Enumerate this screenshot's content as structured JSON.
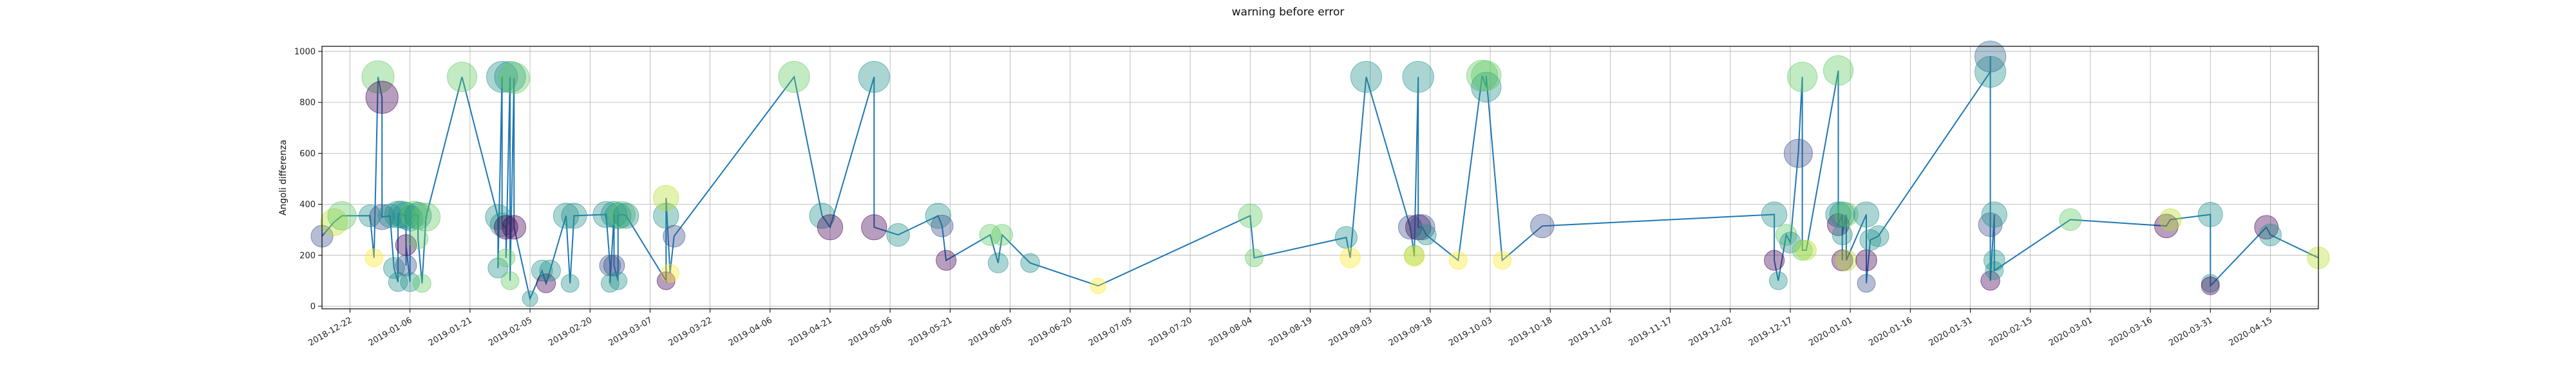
{
  "chart_data": {
    "type": "scatter",
    "title": "warning before error",
    "xlabel": "",
    "ylabel": "Angoli differenza",
    "ylim": [
      -10,
      1020
    ],
    "xlim": [
      "2018-12-15",
      "2020-04-27"
    ],
    "grid": true,
    "yticks": [
      0,
      200,
      400,
      600,
      800,
      1000
    ],
    "xticks": [
      "2018-12-22",
      "2019-01-06",
      "2019-01-21",
      "2019-02-05",
      "2019-02-20",
      "2019-03-07",
      "2019-03-22",
      "2019-04-06",
      "2019-04-21",
      "2019-05-06",
      "2019-05-21",
      "2019-06-05",
      "2019-06-20",
      "2019-07-05",
      "2019-07-20",
      "2019-08-04",
      "2019-08-19",
      "2019-09-03",
      "2019-09-18",
      "2019-10-03",
      "2019-10-18",
      "2019-11-02",
      "2019-11-17",
      "2019-12-02",
      "2019-12-17",
      "2020-01-01",
      "2020-01-16",
      "2020-01-31",
      "2020-02-15",
      "2020-03-01",
      "2020-03-16",
      "2020-03-31",
      "2020-04-15"
    ],
    "line_color": "#1f77b4",
    "points": [
      {
        "x": "2018-12-15",
        "y": 275,
        "s": 60,
        "c": "#3b528b"
      },
      {
        "x": "2018-12-18",
        "y": 330,
        "s": 90,
        "c": "#b5de2b"
      },
      {
        "x": "2018-12-20",
        "y": 355,
        "s": 100,
        "c": "#5ec962"
      },
      {
        "x": "2018-12-27",
        "y": 355,
        "s": 60,
        "c": "#21918c"
      },
      {
        "x": "2018-12-28",
        "y": 190,
        "s": 40,
        "c": "#fde725"
      },
      {
        "x": "2018-12-29",
        "y": 900,
        "s": 130,
        "c": "#5ec962"
      },
      {
        "x": "2018-12-30",
        "y": 820,
        "s": 130,
        "c": "#440154"
      },
      {
        "x": "2018-12-30",
        "y": 350,
        "s": 80,
        "c": "#3b528b"
      },
      {
        "x": "2019-01-01",
        "y": 355,
        "s": 70,
        "c": "#21918c"
      },
      {
        "x": "2019-01-02",
        "y": 150,
        "s": 55,
        "c": "#21918c"
      },
      {
        "x": "2019-01-03",
        "y": 95,
        "s": 45,
        "c": "#21918c"
      },
      {
        "x": "2019-01-03",
        "y": 360,
        "s": 90,
        "c": "#21918c"
      },
      {
        "x": "2019-01-04",
        "y": 360,
        "s": 90,
        "c": "#21918c"
      },
      {
        "x": "2019-01-05",
        "y": 355,
        "s": 90,
        "c": "#21918c"
      },
      {
        "x": "2019-01-05",
        "y": 160,
        "s": 55,
        "c": "#3b528b"
      },
      {
        "x": "2019-01-05",
        "y": 240,
        "s": 55,
        "c": "#440154"
      },
      {
        "x": "2019-01-06",
        "y": 95,
        "s": 45,
        "c": "#21918c"
      },
      {
        "x": "2019-01-06",
        "y": 345,
        "s": 80,
        "c": "#21918c"
      },
      {
        "x": "2019-01-07",
        "y": 360,
        "s": 90,
        "c": "#5ec962"
      },
      {
        "x": "2019-01-08",
        "y": 355,
        "s": 90,
        "c": "#21918c"
      },
      {
        "x": "2019-01-08",
        "y": 265,
        "s": 50,
        "c": "#5ec962"
      },
      {
        "x": "2019-01-09",
        "y": 90,
        "s": 40,
        "c": "#5ec962"
      },
      {
        "x": "2019-01-10",
        "y": 350,
        "s": 100,
        "c": "#5ec962"
      },
      {
        "x": "2019-01-19",
        "y": 900,
        "s": 110,
        "c": "#5ec962"
      },
      {
        "x": "2019-01-28",
        "y": 350,
        "s": 80,
        "c": "#21918c"
      },
      {
        "x": "2019-01-28",
        "y": 150,
        "s": 50,
        "c": "#21918c"
      },
      {
        "x": "2019-01-29",
        "y": 900,
        "s": 120,
        "c": "#21918c"
      },
      {
        "x": "2019-01-29",
        "y": 320,
        "s": 70,
        "c": "#21918c"
      },
      {
        "x": "2019-01-30",
        "y": 310,
        "s": 70,
        "c": "#440154"
      },
      {
        "x": "2019-01-30",
        "y": 190,
        "s": 40,
        "c": "#5ec962"
      },
      {
        "x": "2019-01-31",
        "y": 900,
        "s": 120,
        "c": "#21918c"
      },
      {
        "x": "2019-01-31",
        "y": 100,
        "s": 40,
        "c": "#5ec962"
      },
      {
        "x": "2019-02-01",
        "y": 895,
        "s": 120,
        "c": "#5ec962"
      },
      {
        "x": "2019-02-01",
        "y": 310,
        "s": 70,
        "c": "#440154"
      },
      {
        "x": "2019-02-05",
        "y": 30,
        "s": 30,
        "c": "#21918c"
      },
      {
        "x": "2019-02-08",
        "y": 140,
        "s": 55,
        "c": "#21918c"
      },
      {
        "x": "2019-02-09",
        "y": 90,
        "s": 45,
        "c": "#440154"
      },
      {
        "x": "2019-02-10",
        "y": 140,
        "s": 55,
        "c": "#21918c"
      },
      {
        "x": "2019-02-14",
        "y": 355,
        "s": 80,
        "c": "#21918c"
      },
      {
        "x": "2019-02-15",
        "y": 90,
        "s": 40,
        "c": "#21918c"
      },
      {
        "x": "2019-02-16",
        "y": 355,
        "s": 80,
        "c": "#21918c"
      },
      {
        "x": "2019-02-24",
        "y": 360,
        "s": 85,
        "c": "#21918c"
      },
      {
        "x": "2019-02-25",
        "y": 160,
        "s": 55,
        "c": "#3b528b"
      },
      {
        "x": "2019-02-25",
        "y": 90,
        "s": 40,
        "c": "#21918c"
      },
      {
        "x": "2019-02-26",
        "y": 360,
        "s": 85,
        "c": "#21918c"
      },
      {
        "x": "2019-02-26",
        "y": 160,
        "s": 55,
        "c": "#3b528b"
      },
      {
        "x": "2019-02-27",
        "y": 100,
        "s": 40,
        "c": "#21918c"
      },
      {
        "x": "2019-02-27",
        "y": 355,
        "s": 85,
        "c": "#21918c"
      },
      {
        "x": "2019-02-28",
        "y": 360,
        "s": 85,
        "c": "#5ec962"
      },
      {
        "x": "2019-03-01",
        "y": 355,
        "s": 80,
        "c": "#21918c"
      },
      {
        "x": "2019-03-11",
        "y": 100,
        "s": 40,
        "c": "#440154"
      },
      {
        "x": "2019-03-11",
        "y": 355,
        "s": 80,
        "c": "#21918c"
      },
      {
        "x": "2019-03-11",
        "y": 425,
        "s": 80,
        "c": "#b5de2b"
      },
      {
        "x": "2019-03-12",
        "y": 130,
        "s": 40,
        "c": "#fde725"
      },
      {
        "x": "2019-03-13",
        "y": 275,
        "s": 60,
        "c": "#3b528b"
      },
      {
        "x": "2019-04-12",
        "y": 900,
        "s": 120,
        "c": "#5ec962"
      },
      {
        "x": "2019-04-19",
        "y": 355,
        "s": 80,
        "c": "#21918c"
      },
      {
        "x": "2019-04-21",
        "y": 310,
        "s": 80,
        "c": "#440154"
      },
      {
        "x": "2019-05-02",
        "y": 900,
        "s": 120,
        "c": "#21918c"
      },
      {
        "x": "2019-05-02",
        "y": 310,
        "s": 80,
        "c": "#440154"
      },
      {
        "x": "2019-05-08",
        "y": 280,
        "s": 65,
        "c": "#21918c"
      },
      {
        "x": "2019-05-18",
        "y": 355,
        "s": 80,
        "c": "#21918c"
      },
      {
        "x": "2019-05-19",
        "y": 315,
        "s": 60,
        "c": "#3b528b"
      },
      {
        "x": "2019-05-20",
        "y": 180,
        "s": 50,
        "c": "#440154"
      },
      {
        "x": "2019-05-31",
        "y": 280,
        "s": 55,
        "c": "#5ec962"
      },
      {
        "x": "2019-06-02",
        "y": 170,
        "s": 50,
        "c": "#21918c"
      },
      {
        "x": "2019-06-03",
        "y": 280,
        "s": 55,
        "c": "#5ec962"
      },
      {
        "x": "2019-06-10",
        "y": 170,
        "s": 45,
        "c": "#21918c"
      },
      {
        "x": "2019-06-27",
        "y": 80,
        "s": 30,
        "c": "#fde725"
      },
      {
        "x": "2019-08-04",
        "y": 355,
        "s": 70,
        "c": "#5ec962"
      },
      {
        "x": "2019-08-05",
        "y": 190,
        "s": 40,
        "c": "#5ec962"
      },
      {
        "x": "2019-08-28",
        "y": 270,
        "s": 60,
        "c": "#21918c"
      },
      {
        "x": "2019-08-29",
        "y": 190,
        "s": 50,
        "c": "#fde725"
      },
      {
        "x": "2019-09-02",
        "y": 900,
        "s": 120,
        "c": "#21918c"
      },
      {
        "x": "2019-09-13",
        "y": 310,
        "s": 70,
        "c": "#3b528b"
      },
      {
        "x": "2019-09-14",
        "y": 200,
        "s": 50,
        "c": "#5ec962"
      },
      {
        "x": "2019-09-14",
        "y": 195,
        "s": 50,
        "c": "#fde725"
      },
      {
        "x": "2019-09-15",
        "y": 900,
        "s": 120,
        "c": "#21918c"
      },
      {
        "x": "2019-09-15",
        "y": 310,
        "s": 80,
        "c": "#440154"
      },
      {
        "x": "2019-09-16",
        "y": 310,
        "s": 80,
        "c": "#3b528b"
      },
      {
        "x": "2019-09-17",
        "y": 280,
        "s": 50,
        "c": "#21918c"
      },
      {
        "x": "2019-09-25",
        "y": 180,
        "s": 40,
        "c": "#fde725"
      },
      {
        "x": "2019-10-01",
        "y": 905,
        "s": 120,
        "c": "#5ec962"
      },
      {
        "x": "2019-10-02",
        "y": 860,
        "s": 110,
        "c": "#21918c"
      },
      {
        "x": "2019-10-02",
        "y": 905,
        "s": 110,
        "c": "#5ec962"
      },
      {
        "x": "2019-10-06",
        "y": 180,
        "s": 40,
        "c": "#fde725"
      },
      {
        "x": "2019-10-16",
        "y": 315,
        "s": 70,
        "c": "#3b528b"
      },
      {
        "x": "2019-12-13",
        "y": 360,
        "s": 80,
        "c": "#21918c"
      },
      {
        "x": "2019-12-13",
        "y": 180,
        "s": 50,
        "c": "#440154"
      },
      {
        "x": "2019-12-14",
        "y": 100,
        "s": 40,
        "c": "#21918c"
      },
      {
        "x": "2019-12-16",
        "y": 280,
        "s": 55,
        "c": "#5ec962"
      },
      {
        "x": "2019-12-17",
        "y": 250,
        "s": 55,
        "c": "#21918c"
      },
      {
        "x": "2019-12-19",
        "y": 600,
        "s": 100,
        "c": "#3b528b"
      },
      {
        "x": "2019-12-20",
        "y": 900,
        "s": 110,
        "c": "#5ec962"
      },
      {
        "x": "2019-12-20",
        "y": 220,
        "s": 50,
        "c": "#5ec962"
      },
      {
        "x": "2019-12-21",
        "y": 220,
        "s": 50,
        "c": "#b5de2b"
      },
      {
        "x": "2019-12-29",
        "y": 925,
        "s": 110,
        "c": "#5ec962"
      },
      {
        "x": "2019-12-29",
        "y": 360,
        "s": 80,
        "c": "#21918c"
      },
      {
        "x": "2019-12-29",
        "y": 320,
        "s": 60,
        "c": "#440154"
      },
      {
        "x": "2019-12-30",
        "y": 360,
        "s": 80,
        "c": "#21918c"
      },
      {
        "x": "2019-12-30",
        "y": 180,
        "s": 55,
        "c": "#440154"
      },
      {
        "x": "2019-12-30",
        "y": 280,
        "s": 50,
        "c": "#21918c"
      },
      {
        "x": "2019-12-31",
        "y": 360,
        "s": 70,
        "c": "#5ec962"
      },
      {
        "x": "2019-12-31",
        "y": 180,
        "s": 55,
        "c": "#b5de2b"
      },
      {
        "x": "2020-01-05",
        "y": 360,
        "s": 80,
        "c": "#21918c"
      },
      {
        "x": "2020-01-05",
        "y": 180,
        "s": 55,
        "c": "#440154"
      },
      {
        "x": "2020-01-05",
        "y": 90,
        "s": 40,
        "c": "#3b528b"
      },
      {
        "x": "2020-01-06",
        "y": 260,
        "s": 55,
        "c": "#21918c"
      },
      {
        "x": "2020-01-08",
        "y": 275,
        "s": 55,
        "c": "#21918c"
      },
      {
        "x": "2020-02-05",
        "y": 920,
        "s": 120,
        "c": "#21918c"
      },
      {
        "x": "2020-02-05",
        "y": 980,
        "s": 120,
        "c": "#31688e"
      },
      {
        "x": "2020-02-05",
        "y": 320,
        "s": 70,
        "c": "#3b528b"
      },
      {
        "x": "2020-02-05",
        "y": 100,
        "s": 45,
        "c": "#440154"
      },
      {
        "x": "2020-02-06",
        "y": 360,
        "s": 80,
        "c": "#21918c"
      },
      {
        "x": "2020-02-06",
        "y": 180,
        "s": 55,
        "c": "#21918c"
      },
      {
        "x": "2020-02-06",
        "y": 140,
        "s": 40,
        "c": "#21918c"
      },
      {
        "x": "2020-02-25",
        "y": 340,
        "s": 60,
        "c": "#5ec962"
      },
      {
        "x": "2020-03-20",
        "y": 315,
        "s": 70,
        "c": "#440154"
      },
      {
        "x": "2020-03-21",
        "y": 340,
        "s": 60,
        "c": "#b5de2b"
      },
      {
        "x": "2020-03-31",
        "y": 360,
        "s": 75,
        "c": "#21918c"
      },
      {
        "x": "2020-03-31",
        "y": 90,
        "s": 40,
        "c": "#21918c"
      },
      {
        "x": "2020-03-31",
        "y": 80,
        "s": 40,
        "c": "#440154"
      },
      {
        "x": "2020-04-14",
        "y": 310,
        "s": 70,
        "c": "#440154"
      },
      {
        "x": "2020-04-15",
        "y": 280,
        "s": 60,
        "c": "#21918c"
      },
      {
        "x": "2020-04-27",
        "y": 190,
        "s": 60,
        "c": "#b5de2b"
      }
    ]
  }
}
